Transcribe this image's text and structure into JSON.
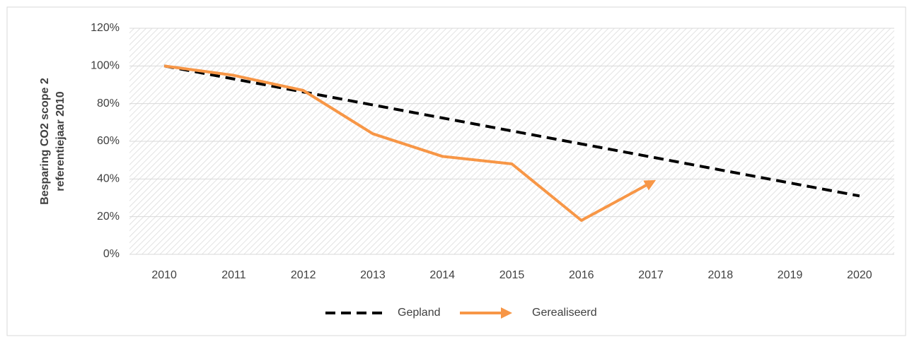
{
  "chart_data": {
    "type": "line",
    "ylabel": [
      "Besparing CO2 scope 2",
      "referentiejaar 2010"
    ],
    "categories": [
      "2010",
      "2011",
      "2012",
      "2013",
      "2014",
      "2015",
      "2016",
      "2017",
      "2018",
      "2019",
      "2020"
    ],
    "series": [
      {
        "name": "Gepland",
        "color": "#000000",
        "dashed": true,
        "values": [
          100,
          93.1,
          86.2,
          79.3,
          72.4,
          65.5,
          58.6,
          51.7,
          44.8,
          37.9,
          31
        ]
      },
      {
        "name": "Gerealiseerd",
        "color": "#f79646",
        "arrow": true,
        "values": [
          100,
          95,
          87,
          64,
          52,
          48,
          18,
          38,
          null,
          null,
          null
        ]
      }
    ],
    "ylim": [
      0,
      120
    ],
    "yticks": [
      {
        "value": 0,
        "label": "0%"
      },
      {
        "value": 20,
        "label": "20%"
      },
      {
        "value": 40,
        "label": "40%"
      },
      {
        "value": 60,
        "label": "60%"
      },
      {
        "value": 80,
        "label": "80%"
      },
      {
        "value": 100,
        "label": "100%"
      },
      {
        "value": 120,
        "label": "120%"
      }
    ],
    "grid": true,
    "legend": "bottom"
  }
}
